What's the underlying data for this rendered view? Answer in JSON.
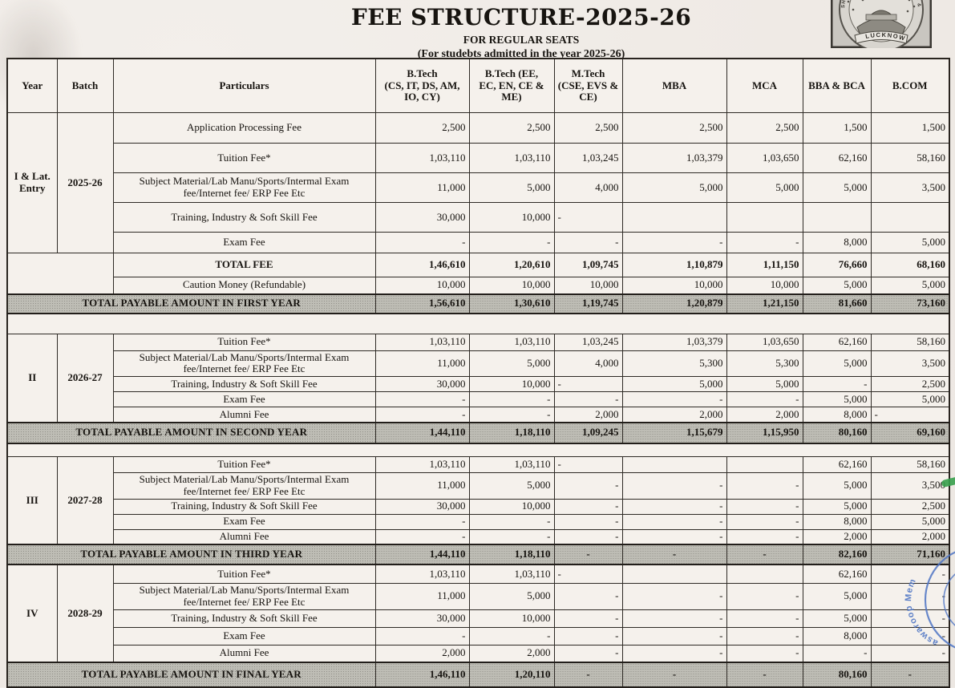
{
  "page": {
    "title": "FEE STRUCTURE-2025-26",
    "subtitle1": "FOR REGULAR SEATS",
    "subtitle2": "(For studebts admitted in the year 2025-26)"
  },
  "logo": {
    "ring_text": "SHRI RAMSWAROOP ENGINEERING & MGMT",
    "banner": "LUCKNOW"
  },
  "stamp": {
    "visible_text": "aswaroop Mem"
  },
  "table": {
    "columns": [
      "Year",
      "Batch",
      "Particulars",
      "B.Tech\n(CS, IT, DS, AM,\nIO, CY)",
      "B.Tech      (EE,\nEC, EN, CE &\nME)",
      "M.Tech\n(CSE, EVS &\nCE)",
      "MBA",
      "MCA",
      "BBA & BCA",
      "B.COM"
    ],
    "blocks": [
      {
        "year": "I & Lat. Entry",
        "batch": "2025-26",
        "rows": [
          {
            "label": "Application Processing Fee",
            "values": [
              "2,500",
              "2,500",
              "2,500",
              "2,500",
              "2,500",
              "1,500",
              "1,500"
            ]
          },
          {
            "label": "Tuition Fee*",
            "values": [
              "1,03,110",
              "1,03,110",
              "1,03,245",
              "1,03,379",
              "1,03,650",
              "62,160",
              "58,160"
            ]
          },
          {
            "label": "Subject Material/Lab Manu/Sports/Intermal Exam fee/Internet fee/ ERP Fee Etc",
            "values": [
              "11,000",
              "5,000",
              "4,000",
              "5,000",
              "5,000",
              "5,000",
              "3,500"
            ]
          },
          {
            "label": "Training, Industry & Soft Skill Fee",
            "values": [
              "30,000",
              "10,000",
              {
                "v": "-",
                "align": "left"
              },
              "",
              "",
              "",
              ""
            ]
          },
          {
            "label": "Exam Fee",
            "values": [
              "-",
              "-",
              "-",
              "-",
              "-",
              "8,000",
              "5,000"
            ]
          }
        ],
        "total_fee": {
          "label": "TOTAL FEE",
          "values": [
            "1,46,610",
            "1,20,610",
            "1,09,745",
            "1,10,879",
            "1,11,150",
            "76,660",
            "68,160"
          ]
        },
        "caution": {
          "label": "Caution Money (Refundable)",
          "values": [
            "10,000",
            "10,000",
            "10,000",
            "10,000",
            "10,000",
            "5,000",
            "5,000"
          ]
        },
        "total_payable": {
          "label": "TOTAL PAYABLE AMOUNT IN FIRST YEAR",
          "values": [
            "1,56,610",
            "1,30,610",
            "1,19,745",
            "1,20,879",
            "1,21,150",
            "81,660",
            "73,160"
          ]
        }
      },
      {
        "year": "II",
        "batch": "2026-27",
        "rows": [
          {
            "label": "Tuition Fee*",
            "values": [
              "1,03,110",
              "1,03,110",
              "1,03,245",
              "1,03,379",
              "1,03,650",
              "62,160",
              "58,160"
            ]
          },
          {
            "label": "Subject Material/Lab Manu/Sports/Intermal Exam fee/Internet fee/ ERP Fee Etc",
            "values": [
              "11,000",
              "5,000",
              "4,000",
              "5,300",
              "5,300",
              "5,000",
              "3,500"
            ]
          },
          {
            "label": "Training, Industry & Soft Skill Fee",
            "values": [
              "30,000",
              "10,000",
              {
                "v": "-",
                "align": "left"
              },
              "5,000",
              "5,000",
              "-",
              "2,500"
            ]
          },
          {
            "label": "Exam Fee",
            "values": [
              "-",
              "-",
              "-",
              "-",
              "-",
              "5,000",
              "5,000"
            ]
          },
          {
            "label": "Alumni Fee",
            "values": [
              "-",
              "-",
              "2,000",
              "2,000",
              "2,000",
              "8,000",
              {
                "v": "-",
                "align": "left"
              }
            ]
          }
        ],
        "total_payable": {
          "label": "TOTAL PAYABLE AMOUNT IN SECOND YEAR",
          "values": [
            "1,44,110",
            "1,18,110",
            "1,09,245",
            "1,15,679",
            "1,15,950",
            "80,160",
            "69,160"
          ]
        }
      },
      {
        "year": "III",
        "batch": "2027-28",
        "rows": [
          {
            "label": "Tuition Fee*",
            "values": [
              "1,03,110",
              "1,03,110",
              {
                "v": "-",
                "align": "left"
              },
              "",
              "",
              "62,160",
              "58,160"
            ]
          },
          {
            "label": "Subject Material/Lab Manu/Sports/Intermal Exam fee/Internet fee/ ERP Fee Etc",
            "values": [
              "11,000",
              "5,000",
              "-",
              "-",
              "-",
              "5,000",
              "3,500"
            ]
          },
          {
            "label": "Training, Industry & Soft Skill Fee",
            "values": [
              "30,000",
              "10,000",
              "-",
              "-",
              "-",
              "5,000",
              "2,500"
            ]
          },
          {
            "label": "Exam Fee",
            "values": [
              "-",
              "-",
              "-",
              "-",
              "-",
              "8,000",
              "5,000"
            ]
          },
          {
            "label": "Alumni Fee",
            "values": [
              "-",
              "-",
              "-",
              "-",
              "-",
              "2,000",
              "2,000"
            ]
          }
        ],
        "total_payable": {
          "label": "TOTAL PAYABLE AMOUNT IN THIRD YEAR",
          "values": [
            "1,44,110",
            "1,18,110",
            "-",
            "-",
            "-",
            "82,160",
            "71,160"
          ]
        }
      },
      {
        "year": "IV",
        "batch": "2028-29",
        "rows": [
          {
            "label": "Tuition Fee*",
            "values": [
              "1,03,110",
              "1,03,110",
              {
                "v": "-",
                "align": "left"
              },
              "",
              "",
              "62,160",
              "-"
            ]
          },
          {
            "label": "Subject Material/Lab Manu/Sports/Intermal Exam fee/Internet fee/ ERP Fee Etc",
            "values": [
              "11,000",
              "5,000",
              "-",
              "-",
              "-",
              "5,000",
              "-"
            ]
          },
          {
            "label": "Training, Industry & Soft Skill Fee",
            "values": [
              "30,000",
              "10,000",
              "-",
              "-",
              "-",
              "5,000",
              "-"
            ]
          },
          {
            "label": "Exam Fee",
            "values": [
              "-",
              "-",
              "-",
              "-",
              "-",
              "8,000",
              "-"
            ]
          },
          {
            "label": "Alumni Fee",
            "values": [
              "2,000",
              "2,000",
              "-",
              "-",
              "-",
              "-",
              "-"
            ]
          }
        ],
        "total_payable": {
          "label": "TOTAL PAYABLE AMOUNT IN FINAL YEAR",
          "values": [
            "1,46,110",
            "1,20,110",
            "-",
            "-",
            "-",
            "80,160",
            "-"
          ]
        }
      }
    ]
  }
}
